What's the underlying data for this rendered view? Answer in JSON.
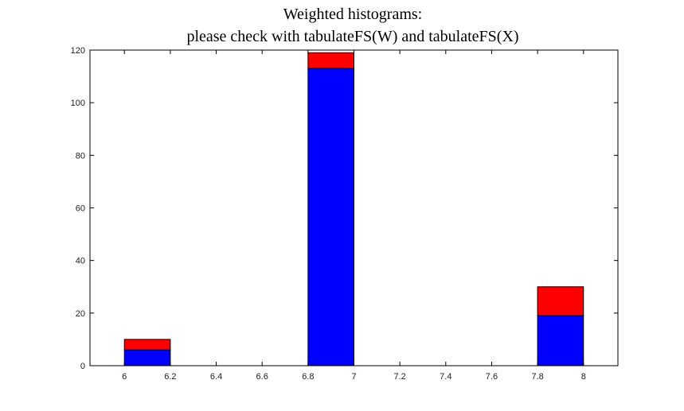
{
  "chart_data": {
    "type": "bar",
    "title": "Weighted histograms:",
    "subtitle": "please check with tabulateFS(W) and tabulateFS(X)",
    "xlabel": "",
    "ylabel": "",
    "xlim": [
      5.85,
      8.15
    ],
    "ylim": [
      0,
      120
    ],
    "xticks": [
      "6",
      "6.2",
      "6.4",
      "6.6",
      "6.8",
      "7",
      "7.2",
      "7.4",
      "7.6",
      "7.8",
      "8"
    ],
    "yticks": [
      "0",
      "20",
      "40",
      "60",
      "80",
      "100",
      "120"
    ],
    "bins": [
      [
        6.0,
        6.2
      ],
      [
        6.8,
        7.0
      ],
      [
        7.8,
        8.0
      ]
    ],
    "stacked": true,
    "grid": false,
    "series": [
      {
        "color": "#0000ff",
        "values": [
          6,
          113,
          19
        ]
      },
      {
        "color": "#ff0000",
        "values": [
          4,
          6,
          11
        ]
      }
    ]
  }
}
